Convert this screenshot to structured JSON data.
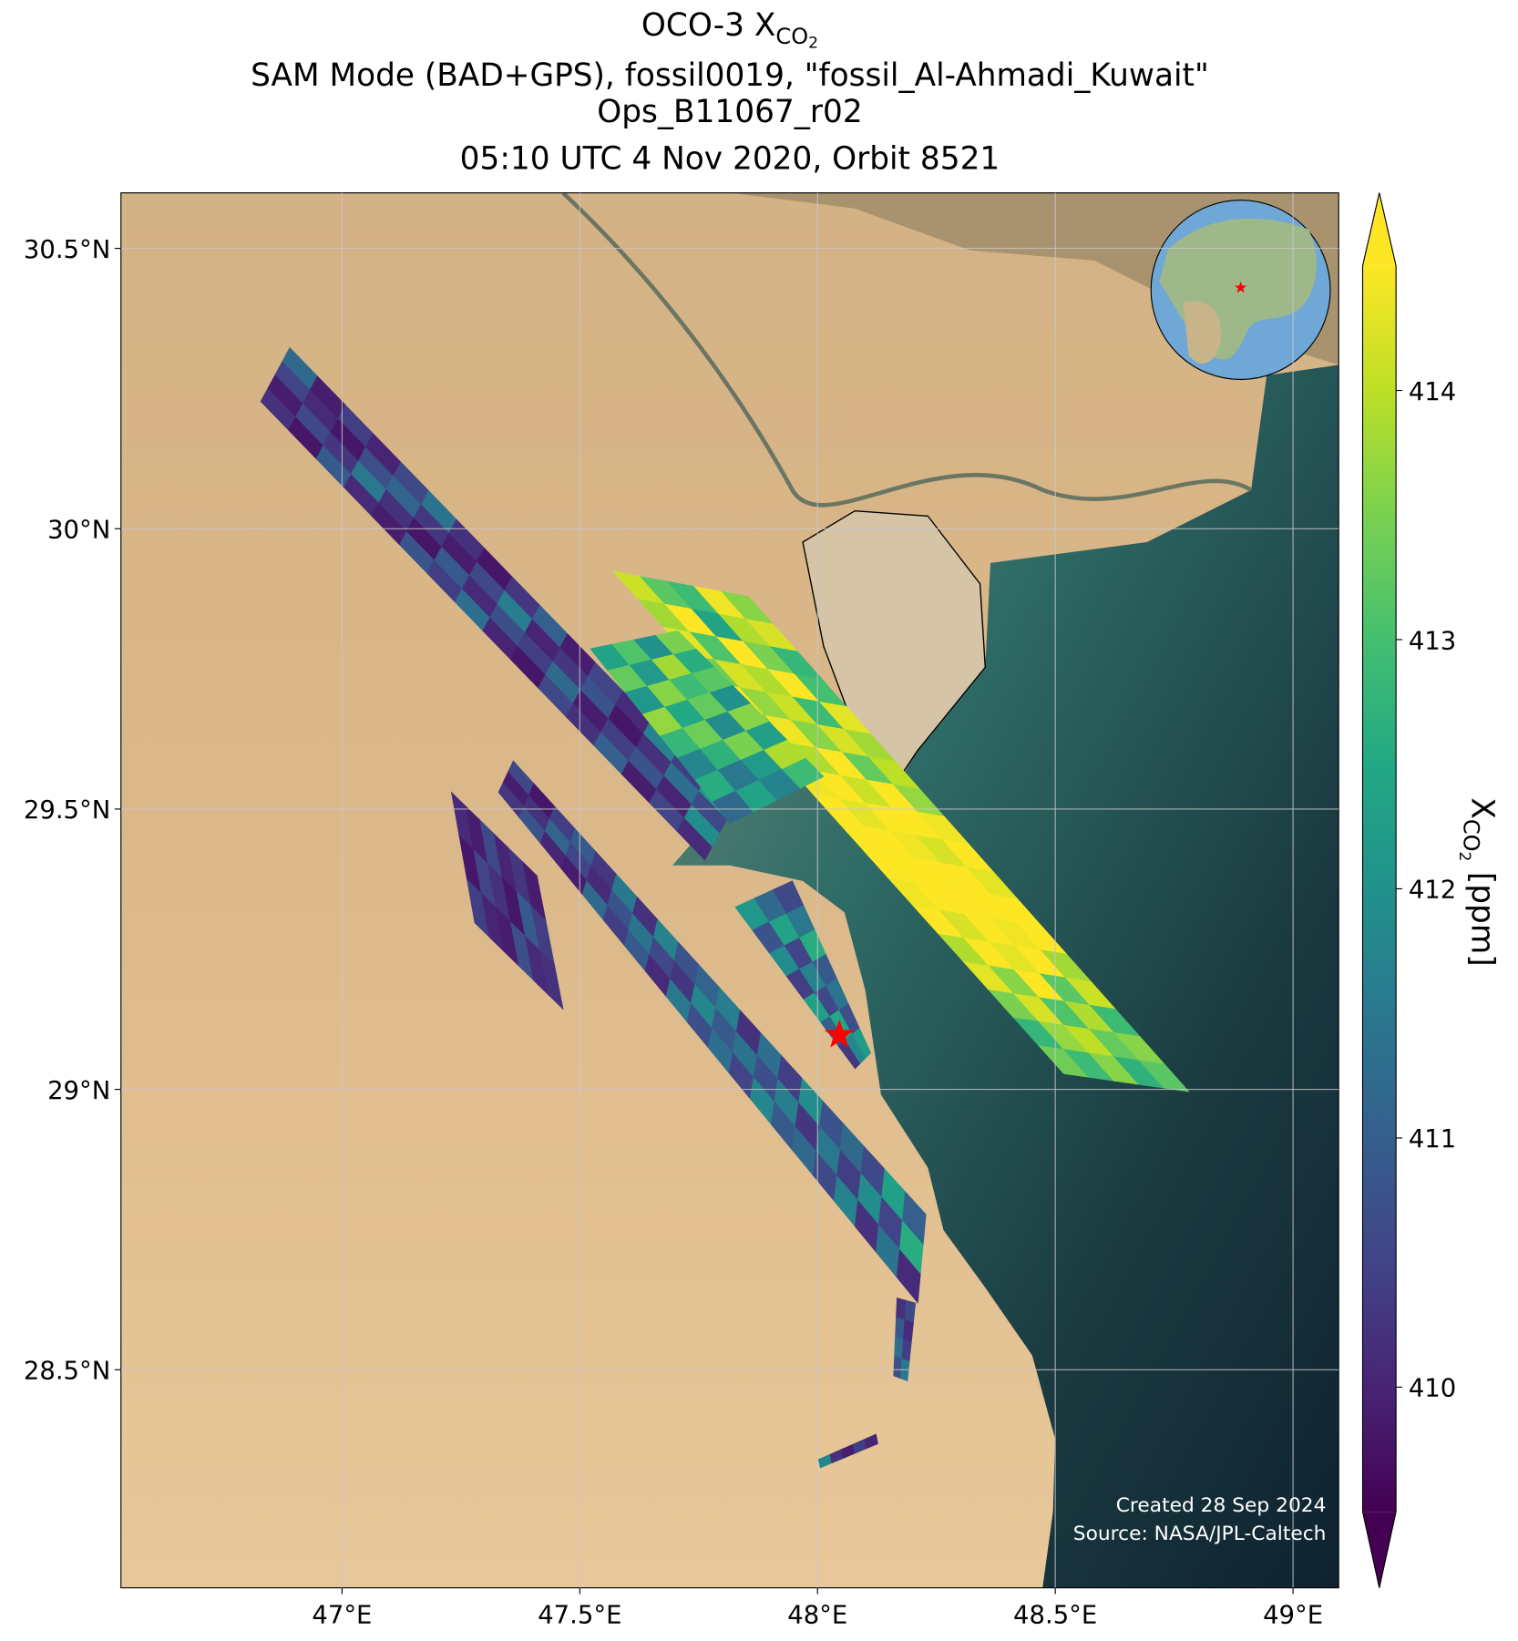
{
  "chart_data": {
    "type": "map",
    "title": {
      "main": "OCO-3 X",
      "sub": "CO",
      "subsub": "2"
    },
    "subtitle": [
      "SAM Mode (BAD+GPS), fossil0019, \"fossil_Al-Ahmadi_Kuwait\"",
      "Ops_B11067_r02",
      "05:10 UTC 4 Nov 2020, Orbit 8521"
    ],
    "xlim": [
      46.535,
      49.096
    ],
    "ylim": [
      28.111,
      30.599
    ],
    "xticks": [
      {
        "value": 47,
        "label": "47°E"
      },
      {
        "value": 47.5,
        "label": "47.5°E"
      },
      {
        "value": 48,
        "label": "48°E"
      },
      {
        "value": 48.5,
        "label": "48.5°E"
      },
      {
        "value": 49,
        "label": "49°E"
      }
    ],
    "yticks": [
      {
        "value": 28.5,
        "label": "28.5°N"
      },
      {
        "value": 29,
        "label": "29°N"
      },
      {
        "value": 29.5,
        "label": "29.5°N"
      },
      {
        "value": 30,
        "label": "30°N"
      },
      {
        "value": 30.5,
        "label": "30.5°N"
      }
    ],
    "grid": true,
    "colormap": "viridis",
    "colorbar": {
      "clim": [
        409.5,
        414.5
      ],
      "ticks": [
        410,
        411,
        412,
        413,
        414
      ],
      "label": {
        "main": "X",
        "sub": "CO",
        "subsub": "2",
        "unit": "[ppm]"
      }
    },
    "target": {
      "lon": 48.046,
      "lat": 29.097,
      "color": "#ff0000"
    },
    "credits": [
      "Created 28 Sep 2024",
      "Source: NASA/JPL-Caltech"
    ],
    "swaths": [
      {
        "corners": [
          [
            46.829,
            30.227
          ],
          [
            46.89,
            30.323
          ],
          [
            47.825,
            29.506
          ],
          [
            47.763,
            29.409
          ]
        ],
        "values": [
          [
            410.2,
            409.9,
            410.5,
            411.2
          ],
          [
            409.8,
            410.6,
            410.1,
            409.9
          ],
          [
            410.9,
            410.3,
            409.8,
            410.4
          ],
          [
            410.1,
            411.5,
            410.7,
            410.0
          ],
          [
            409.9,
            410.2,
            411.1,
            410.6
          ],
          [
            410.8,
            409.8,
            410.3,
            411.4
          ],
          [
            410.4,
            410.9,
            409.9,
            410.2
          ],
          [
            411.3,
            410.1,
            410.6,
            409.8
          ],
          [
            410.0,
            410.7,
            411.6,
            410.3
          ],
          [
            409.8,
            410.4,
            410.0,
            411.0
          ],
          [
            410.6,
            411.2,
            410.3,
            409.9
          ],
          [
            410.2,
            409.9,
            410.8,
            410.5
          ],
          [
            411.0,
            410.4,
            409.8,
            410.1
          ],
          [
            409.9,
            410.8,
            410.2,
            411.7
          ],
          [
            410.5,
            410.0,
            411.3,
            410.4
          ],
          [
            410.1,
            411.9,
            410.6,
            412.2
          ]
        ]
      },
      {
        "corners": [
          [
            47.57,
            29.924
          ],
          [
            47.855,
            29.879
          ],
          [
            48.781,
            28.996
          ],
          [
            48.518,
            29.028
          ]
        ],
        "values": [
          [
            414.1,
            413.2,
            412.9,
            414.4,
            413.6
          ],
          [
            413.8,
            414.5,
            412.4,
            413.9,
            414.2
          ],
          [
            414.3,
            413.1,
            414.6,
            413.5,
            412.8
          ],
          [
            413.4,
            414.2,
            413.9,
            414.5,
            413.0
          ],
          [
            414.5,
            413.7,
            414.1,
            412.9,
            414.3
          ],
          [
            413.0,
            414.4,
            413.6,
            414.2,
            413.8
          ],
          [
            414.2,
            413.9,
            414.5,
            413.3,
            414.0
          ],
          [
            414.4,
            414.6,
            414.1,
            414.5,
            413.7
          ],
          [
            414.6,
            414.3,
            414.5,
            414.6,
            414.4
          ],
          [
            414.5,
            414.6,
            414.4,
            414.2,
            414.6
          ],
          [
            414.6,
            414.5,
            414.6,
            414.5,
            414.3
          ],
          [
            414.4,
            414.6,
            414.5,
            414.6,
            414.5
          ],
          [
            414.5,
            414.2,
            414.6,
            414.4,
            414.6
          ],
          [
            413.9,
            414.5,
            414.3,
            414.6,
            413.8
          ],
          [
            414.3,
            413.6,
            414.5,
            413.2,
            414.1
          ],
          [
            413.5,
            414.2,
            413.1,
            413.9,
            412.9
          ],
          [
            412.8,
            413.7,
            414.0,
            413.3,
            413.6
          ],
          [
            413.4,
            412.9,
            413.6,
            412.7,
            413.2
          ]
        ]
      },
      {
        "corners": [
          [
            47.522,
            29.786
          ],
          [
            47.706,
            29.818
          ],
          [
            48.013,
            29.558
          ],
          [
            47.816,
            29.474
          ]
        ],
        "values": [
          [
            412.4,
            413.1,
            412.0,
            413.5
          ],
          [
            413.3,
            412.2,
            413.8,
            412.6
          ],
          [
            412.1,
            413.6,
            412.9,
            413.2
          ],
          [
            413.7,
            412.5,
            413.3,
            412.0
          ],
          [
            412.8,
            413.4,
            411.9,
            413.6
          ],
          [
            411.8,
            412.7,
            413.5,
            412.3
          ],
          [
            412.6,
            411.5,
            412.2,
            413.9
          ],
          [
            411.2,
            412.4,
            411.7,
            412.9
          ]
        ]
      },
      {
        "corners": [
          [
            47.329,
            29.53
          ],
          [
            47.36,
            29.586
          ],
          [
            48.228,
            28.777
          ],
          [
            48.211,
            28.619
          ]
        ],
        "values": [
          [
            410.3,
            409.9,
            410.6
          ],
          [
            410.8,
            410.2,
            409.8
          ],
          [
            410.0,
            411.1,
            410.4
          ],
          [
            409.9,
            410.5,
            410.9
          ],
          [
            411.2,
            410.1,
            410.3
          ],
          [
            410.4,
            410.8,
            411.5
          ],
          [
            410.9,
            411.4,
            410.2
          ],
          [
            410.1,
            410.6,
            411.7
          ],
          [
            411.5,
            410.3,
            410.8
          ],
          [
            410.7,
            411.8,
            411.1
          ],
          [
            411.3,
            410.9,
            411.6
          ],
          [
            410.5,
            411.4,
            410.2
          ],
          [
            411.8,
            410.7,
            411.3
          ],
          [
            410.9,
            411.6,
            410.4
          ],
          [
            411.2,
            410.3,
            411.9
          ],
          [
            410.6,
            411.5,
            410.8
          ],
          [
            411.7,
            410.4,
            411.2
          ],
          [
            410.2,
            411.9,
            410.6
          ],
          [
            411.4,
            410.5,
            412.3
          ],
          [
            410.1,
            412.6,
            411.0
          ]
        ]
      },
      {
        "corners": [
          [
            47.23,
            29.53
          ],
          [
            47.279,
            29.297
          ],
          [
            47.465,
            29.143
          ],
          [
            47.41,
            29.381
          ]
        ],
        "values": [
          [
            410.1,
            409.8,
            410.4
          ],
          [
            409.9,
            410.5,
            410.0
          ],
          [
            410.6,
            410.2,
            409.9
          ],
          [
            410.0,
            409.8,
            410.7
          ],
          [
            410.3,
            410.9,
            410.1
          ],
          [
            409.9,
            410.4,
            410.2
          ]
        ]
      },
      {
        "corners": [
          [
            47.827,
            29.325
          ],
          [
            47.947,
            29.372
          ],
          [
            48.112,
            29.065
          ],
          [
            48.079,
            29.037
          ]
        ],
        "values": [
          [
            412.1,
            411.2,
            410.6
          ],
          [
            410.8,
            412.4,
            411.5
          ],
          [
            411.9,
            410.5,
            412.6
          ],
          [
            410.4,
            411.7,
            410.9
          ],
          [
            412.3,
            410.6,
            411.4
          ],
          [
            411.0,
            412.5,
            410.7
          ],
          [
            410.3,
            411.8,
            412.2
          ]
        ]
      },
      {
        "corners": [
          [
            48.167,
            28.628
          ],
          [
            48.206,
            28.619
          ],
          [
            48.189,
            28.48
          ],
          [
            48.16,
            28.489
          ]
        ],
        "values": [
          [
            410.2,
            410.6
          ],
          [
            410.9,
            410.1
          ],
          [
            411.3,
            410.4
          ],
          [
            410.7,
            411.5
          ]
        ]
      },
      {
        "corners": [
          [
            48.002,
            28.34
          ],
          [
            48.006,
            28.325
          ],
          [
            48.127,
            28.368
          ],
          [
            48.123,
            28.385
          ]
        ],
        "values": [
          [
            411.8
          ],
          [
            410.2
          ],
          [
            409.9
          ],
          [
            410.4
          ],
          [
            410.0
          ]
        ]
      }
    ]
  }
}
